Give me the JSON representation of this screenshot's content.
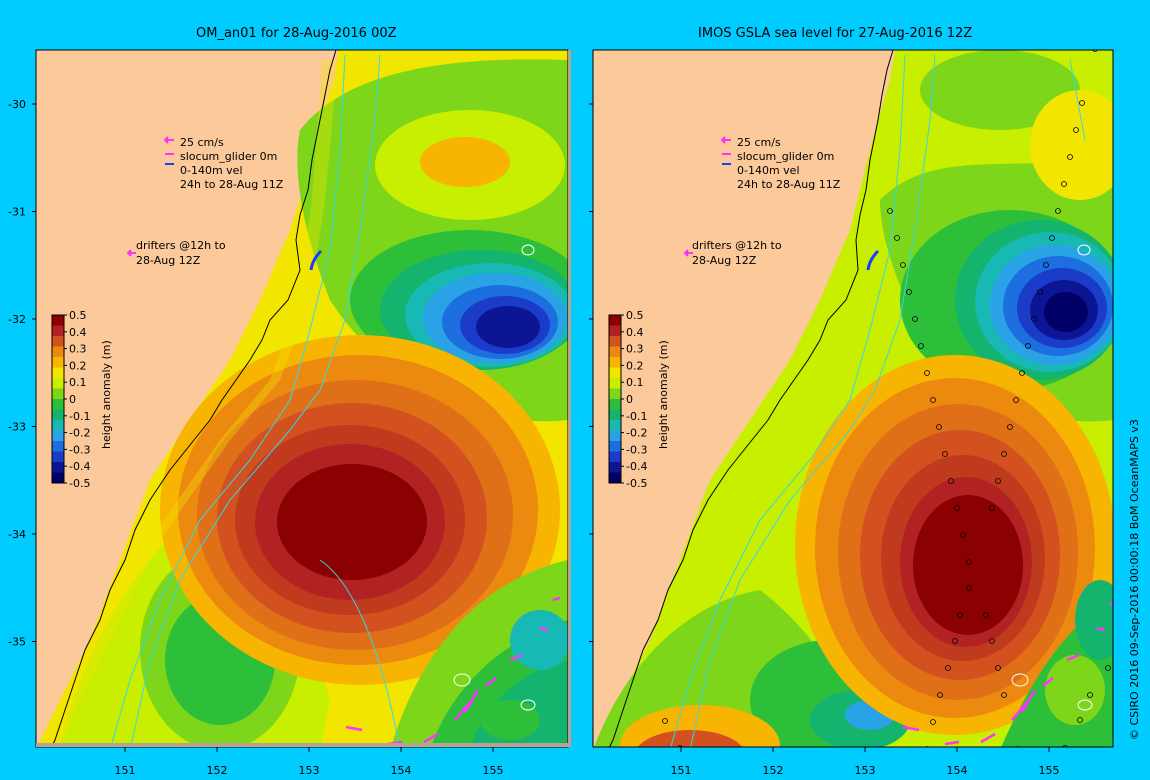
{
  "panels": [
    {
      "title": "OM_an01 for 28-Aug-2016 00Z",
      "legend_speed": "25 cm/s",
      "legend_glider": "slocum_glider 0m",
      "legend_vel": "0-140m vel",
      "legend_time": "24h to 28-Aug 11Z",
      "drifters_line1": "drifters @12h to",
      "drifters_line2": "28-Aug 12Z",
      "colorbar_label": "height anomaly (m)"
    },
    {
      "title": "IMOS GSLA sea level  for 27-Aug-2016 12Z",
      "legend_speed": "25 cm/s",
      "legend_glider": "slocum_glider 0m",
      "legend_vel": "0-140m vel",
      "legend_time": "24h to 28-Aug 11Z",
      "drifters_line1": "drifters @12h to",
      "drifters_line2": "28-Aug 12Z",
      "colorbar_label": "height anomaly (m)"
    }
  ],
  "axes": {
    "x_ticks": [
      "151",
      "152",
      "153",
      "154",
      "155"
    ],
    "y_ticks": [
      "-30",
      "-31",
      "-32",
      "-33",
      "-34",
      "-35"
    ]
  },
  "colorbar": {
    "ticks": [
      "0.5",
      "0.4",
      "0.3",
      "0.2",
      "0.1",
      "0",
      "-0.1",
      "-0.2",
      "-0.3",
      "-0.4",
      "-0.5"
    ],
    "colors": [
      "#8b0000",
      "#b22222",
      "#d2511e",
      "#ec8a10",
      "#f7b400",
      "#f2e600",
      "#c8ee00",
      "#7ed61a",
      "#2dbe3a",
      "#14b46e",
      "#18b8b4",
      "#2aa3e6",
      "#1d6fe0",
      "#1a3cc8",
      "#0c1694",
      "#000066"
    ]
  },
  "map_colors": {
    "land": "#fcc99a",
    "shelf": "#b9a390",
    "isobath": "#33d9e6",
    "drifter": "#ff33ff",
    "glider": "#1a3cff"
  },
  "credit": "© CSIRO 2016  09-Sep-2016 00:00:18 BoM OceanMAPS v3"
}
